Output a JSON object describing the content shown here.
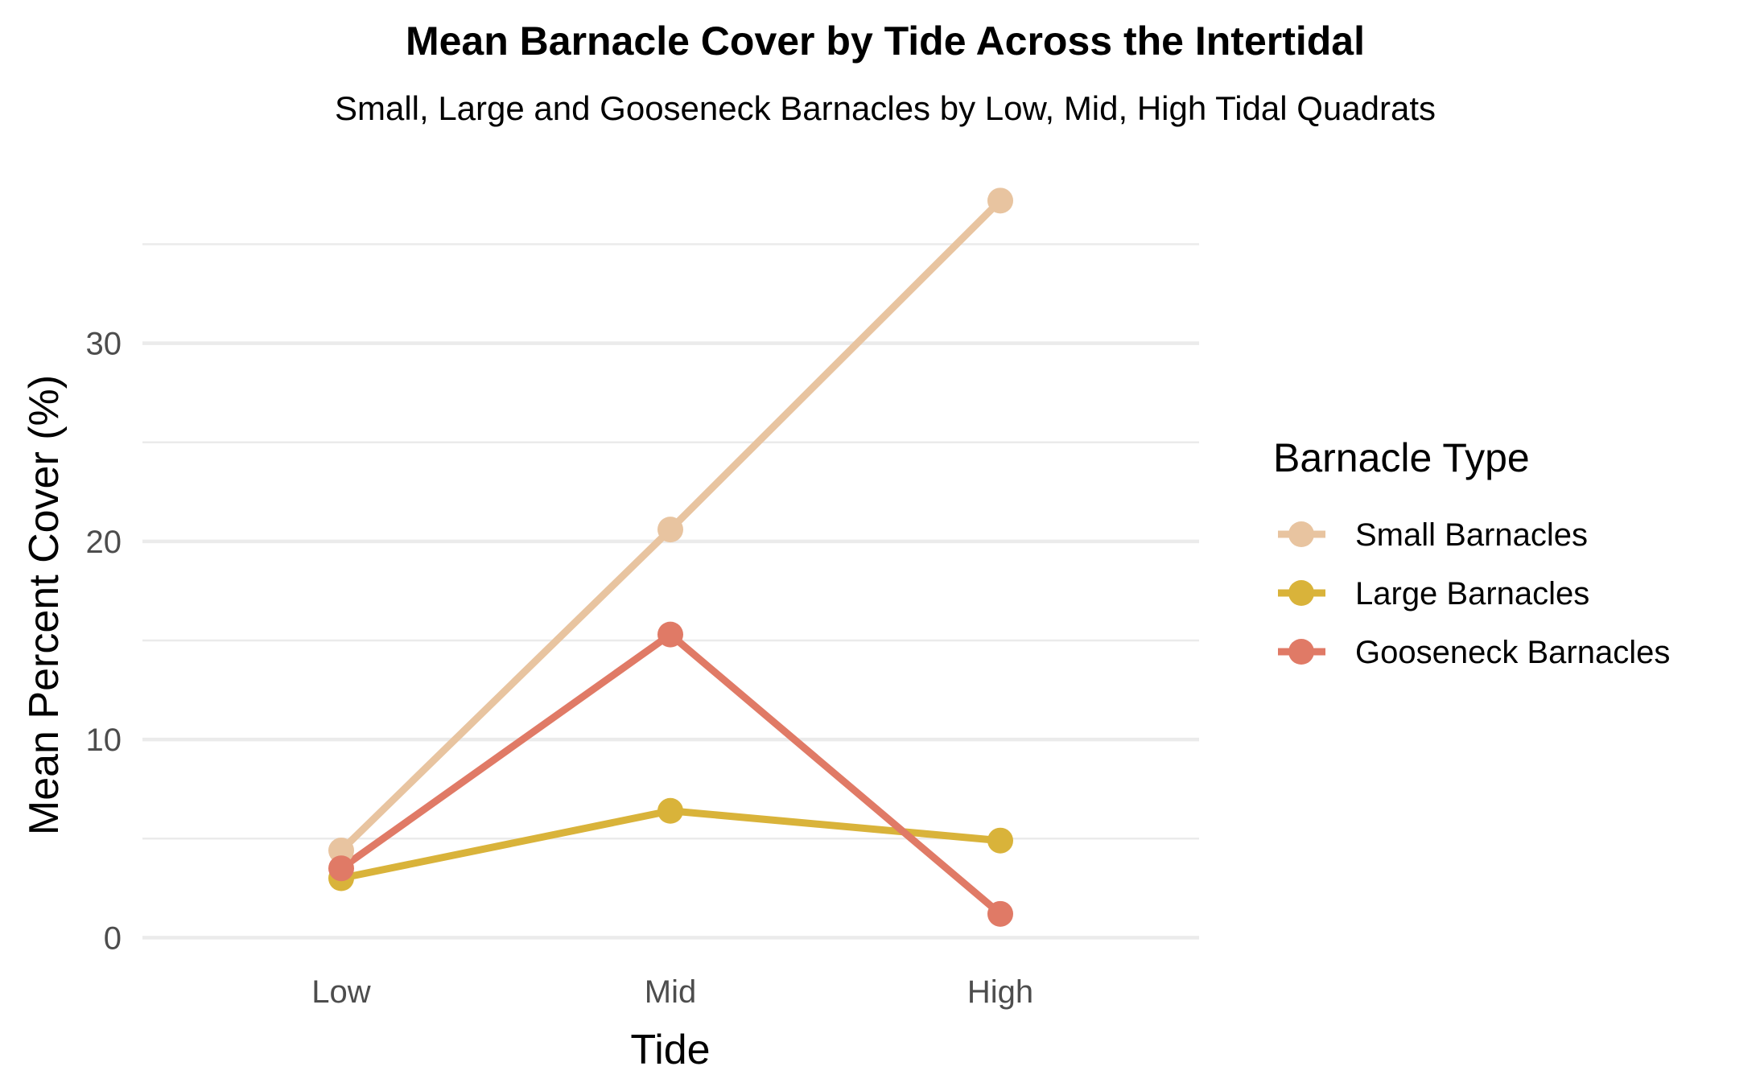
{
  "chart_data": {
    "type": "line",
    "title": "Mean Barnacle Cover by Tide Across the Intertidal",
    "subtitle": "Small, Large and Gooseneck Barnacles by Low, Mid, High Tidal Quadrats",
    "xlabel": "Tide",
    "ylabel": "Mean Percent Cover (%)",
    "categories": [
      "Low",
      "Mid",
      "High"
    ],
    "ylim": [
      -1,
      39
    ],
    "yticks": [
      0,
      10,
      20,
      30
    ],
    "y_tick_labels": [
      "0",
      "10",
      "20",
      "30"
    ],
    "grid": true,
    "legend": {
      "title": "Barnacle Type",
      "position": "right"
    },
    "series": [
      {
        "name": "Small Barnacles",
        "color": "#E8C4A0",
        "values": [
          4.4,
          20.6,
          37.2
        ]
      },
      {
        "name": "Large Barnacles",
        "color": "#D9B33A",
        "values": [
          3.0,
          6.4,
          4.9
        ]
      },
      {
        "name": "Gooseneck Barnacles",
        "color": "#E07A66",
        "values": [
          3.5,
          15.3,
          1.2
        ]
      }
    ]
  }
}
